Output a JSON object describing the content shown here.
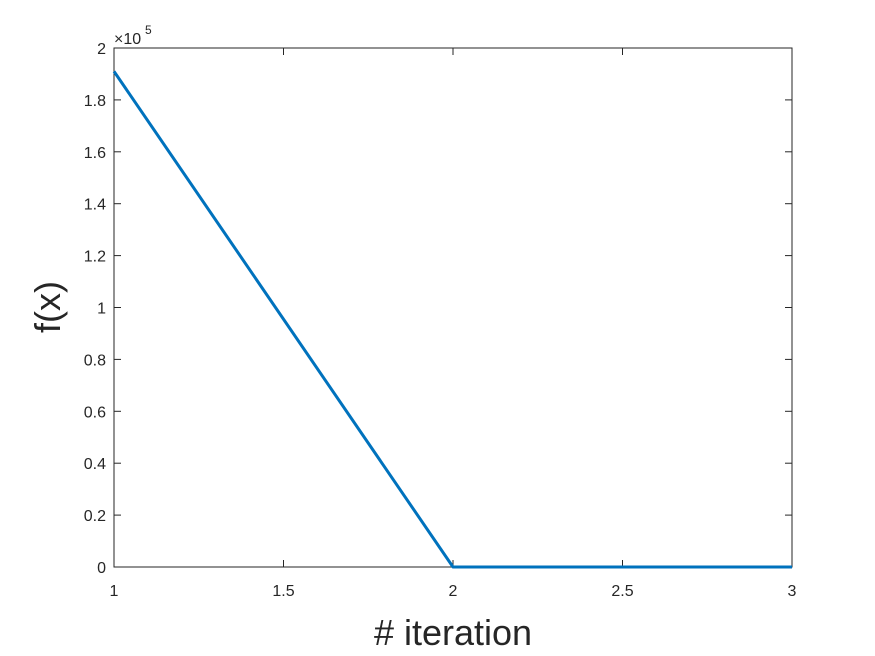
{
  "chart_data": {
    "type": "line",
    "xlabel": "# iteration",
    "ylabel": "f(x)",
    "xlim": [
      1,
      3
    ],
    "ylim": [
      0,
      2
    ],
    "y_exponent_label": {
      "base": "×10",
      "power": "5"
    },
    "x_ticks": [
      "1",
      "1.5",
      "2",
      "2.5",
      "3"
    ],
    "y_ticks": [
      "0",
      "0.2",
      "0.4",
      "0.6",
      "0.8",
      "1",
      "1.2",
      "1.4",
      "1.6",
      "1.8",
      "2"
    ],
    "grid": false,
    "series": [
      {
        "color": "#0072BD",
        "x": [
          1,
          2,
          3
        ],
        "y": [
          1.91,
          0,
          0
        ]
      }
    ]
  }
}
